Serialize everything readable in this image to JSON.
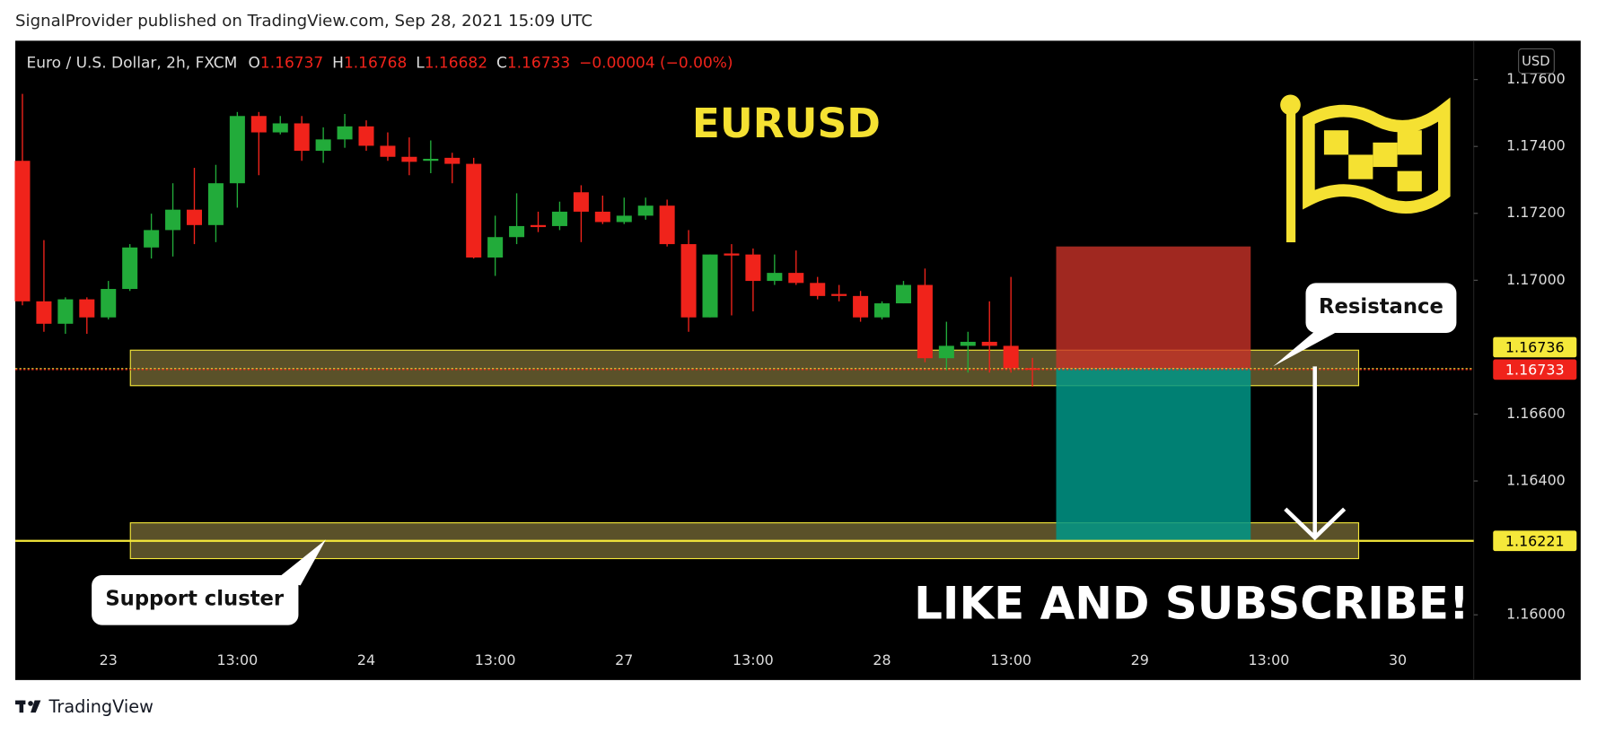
{
  "header": "SignalProvider published on TradingView.com, Sep 28, 2021 15:09 UTC",
  "footer": "TradingView",
  "chart_data": {
    "type": "candlestick",
    "title": "EURUSD",
    "symbol": "Euro / U.S. Dollar, 2h, FXCM",
    "legend_values": [
      {
        "label": "O",
        "value": 1.16737
      },
      {
        "label": "H",
        "value": 1.16768
      },
      {
        "label": "L",
        "value": 1.16682
      },
      {
        "label": "C",
        "value": 1.16733
      }
    ],
    "change": "−0.00004 (−0.00%)",
    "currency": "USD",
    "categories": [
      null,
      null,
      null,
      null,
      "23",
      null,
      null,
      null,
      null,
      null,
      "13:00",
      null,
      null,
      null,
      null,
      null,
      "24",
      null,
      null,
      null,
      null,
      null,
      "13:00",
      null,
      null,
      null,
      null,
      null,
      "27",
      null,
      null,
      null,
      null,
      null,
      "13:00",
      null,
      null,
      null,
      null,
      null,
      "28",
      null,
      null,
      null,
      null,
      null,
      "13:00",
      null,
      null,
      null,
      null,
      null,
      "29",
      null,
      null,
      null,
      null,
      null,
      "13:00",
      null,
      null,
      null,
      null,
      null,
      "30",
      null,
      null,
      null
    ],
    "open": [
      1.17357,
      1.16937,
      1.1687,
      1.16943,
      1.16889,
      1.16974,
      1.17098,
      1.1715,
      1.17211,
      1.17165,
      1.1729,
      1.17491,
      1.17442,
      1.17469,
      1.17387,
      1.17421,
      1.1746,
      1.17402,
      1.17369,
      1.17357,
      1.17366,
      1.17348,
      1.17068,
      1.17129,
      1.17165,
      1.17162,
      1.17263,
      1.17205,
      1.17174,
      1.17193,
      1.17223,
      1.17108,
      1.16889,
      1.1708,
      1.17077,
      1.16998,
      1.17022,
      1.16992,
      1.16959,
      1.16953,
      1.16889,
      1.16931,
      1.16986,
      1.16767,
      1.16804,
      1.16816,
      1.16804,
      1.16737,
      null,
      null,
      null,
      null,
      null,
      null,
      null,
      null,
      null,
      null,
      null,
      null,
      null,
      null,
      null,
      null,
      null,
      null,
      null,
      null
    ],
    "high": [
      1.17557,
      1.1712,
      1.16949,
      1.16949,
      1.16998,
      1.17108,
      1.17199,
      1.1729,
      1.17336,
      1.17345,
      1.17503,
      1.17503,
      1.17491,
      1.17491,
      1.17457,
      1.17497,
      1.17478,
      1.17442,
      1.17427,
      1.17418,
      1.17381,
      1.17366,
      1.17193,
      1.1726,
      1.17205,
      1.17235,
      1.17284,
      1.17253,
      1.17247,
      1.17247,
      1.17241,
      1.1715,
      1.17077,
      1.17108,
      1.17095,
      1.17077,
      1.17089,
      1.1701,
      1.16986,
      1.16968,
      1.16937,
      1.16998,
      1.17035,
      1.16876,
      1.16846,
      1.16937,
      1.1701,
      1.16768,
      null,
      null,
      null,
      null,
      null,
      null,
      null,
      null,
      null,
      null,
      null,
      null,
      null,
      null,
      null,
      null,
      null,
      null,
      null,
      null
    ],
    "low": [
      1.16925,
      1.16846,
      1.1684,
      1.1684,
      1.16883,
      1.16968,
      1.17065,
      1.17071,
      1.17108,
      1.17114,
      1.17217,
      1.17314,
      1.17436,
      1.17357,
      1.17351,
      1.17396,
      1.17387,
      1.17357,
      1.17314,
      1.1732,
      1.1729,
      1.17065,
      1.17013,
      1.17108,
      1.17144,
      1.1715,
      1.17114,
      1.17168,
      1.17168,
      1.17181,
      1.17101,
      1.16846,
      1.16889,
      1.16895,
      1.16907,
      1.16986,
      1.16986,
      1.16943,
      1.16937,
      1.16876,
      1.16883,
      1.16931,
      1.16755,
      1.16731,
      1.16724,
      1.16724,
      1.16724,
      1.16682,
      null,
      null,
      null,
      null,
      null,
      null,
      null,
      null,
      null,
      null,
      null,
      null,
      null,
      null,
      null,
      null,
      null,
      null,
      null,
      null
    ],
    "close": [
      1.16937,
      1.1687,
      1.16943,
      1.16889,
      1.16974,
      1.17098,
      1.1715,
      1.17211,
      1.17165,
      1.1729,
      1.17491,
      1.17442,
      1.17469,
      1.17387,
      1.17421,
      1.1746,
      1.17402,
      1.17369,
      1.17354,
      1.17363,
      1.17348,
      1.17068,
      1.17129,
      1.17162,
      1.17159,
      1.17205,
      1.17205,
      1.17174,
      1.17193,
      1.17223,
      1.17108,
      1.16889,
      1.17077,
      1.17074,
      1.16998,
      1.17022,
      1.16992,
      1.16953,
      1.16953,
      1.16889,
      1.16931,
      1.16986,
      1.16767,
      1.16804,
      1.16816,
      1.16804,
      1.16737,
      1.16733,
      null,
      null,
      null,
      null,
      null,
      null,
      null,
      null,
      null,
      null,
      null,
      null,
      null,
      null,
      null,
      null,
      null,
      null,
      null,
      null
    ],
    "up_color": "#22ab3a",
    "down_color": "#f0231b",
    "ylim": [
      1.15805,
      1.17716
    ],
    "yticks": [
      {
        "value": 1.176,
        "label": "1.17600"
      },
      {
        "value": 1.174,
        "label": "1.17400"
      },
      {
        "value": 1.172,
        "label": "1.17200"
      },
      {
        "value": 1.17,
        "label": "1.17000"
      },
      {
        "value": 1.166,
        "label": "1.16600"
      },
      {
        "value": 1.164,
        "label": "1.16400"
      },
      {
        "value": 1.16,
        "label": "1.16000"
      }
    ],
    "grid": false,
    "price_lines": [
      {
        "value": 1.16736,
        "color": "#f5e83a"
      },
      {
        "value": 1.16733,
        "color": "#f0231b"
      },
      {
        "value": 1.16221,
        "color": "#f5e83a"
      }
    ],
    "zones": [
      {
        "name": "Resistance",
        "low": 1.16685,
        "high": 1.16791
      },
      {
        "name": "Support cluster",
        "low": 1.16168,
        "high": 1.16275
      }
    ],
    "position": {
      "stop": 1.17101,
      "entry": 1.16736,
      "target": 1.16221
    },
    "banner": "LIKE AND SUBSCRIBE!"
  }
}
